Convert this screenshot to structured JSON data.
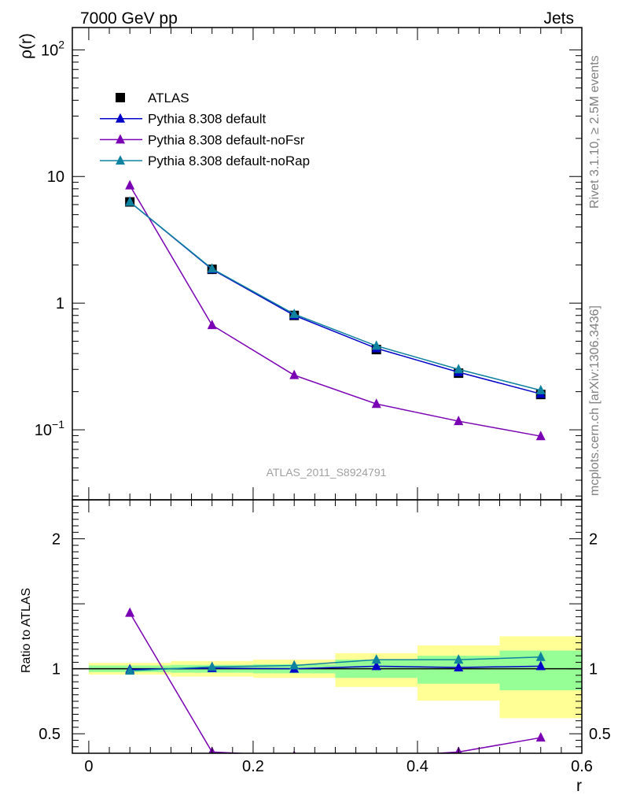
{
  "header": {
    "left": "7000 GeV pp",
    "right": "Jets"
  },
  "side_labels": {
    "top": "Rivet 3.1.10, ≥ 2.5M events",
    "bottom": "mcplots.cern.ch [arXiv:1306.3436]"
  },
  "watermark": "ATLAS_2011_S8924791",
  "colors": {
    "atlas": "#000000",
    "default": "#0000c8",
    "noFsr": "#7a00b4",
    "noRap": "#0f82a0",
    "band_outer": "#ffff96",
    "band_inner": "#96ff96"
  },
  "chart_data": [
    {
      "type": "line",
      "panel": "main",
      "ylabel": "ρ(r)",
      "yscale": "log",
      "ylim": [
        0.028,
        150
      ],
      "xlim": [
        -0.02,
        0.6
      ],
      "yticks": [
        {
          "v": 100,
          "label": "10",
          "sup": "2"
        },
        {
          "v": 10,
          "label": "10",
          "sup": ""
        },
        {
          "v": 1,
          "label": "1",
          "sup": ""
        },
        {
          "v": 0.1,
          "label": "10",
          "sup": "−1"
        }
      ],
      "x": [
        0.05,
        0.15,
        0.25,
        0.35,
        0.45,
        0.55
      ],
      "legend_position": "top-left",
      "series": [
        {
          "name": "ATLAS",
          "key": "atlas",
          "marker": "square",
          "values": [
            6.3,
            1.85,
            0.8,
            0.43,
            0.28,
            0.19
          ]
        },
        {
          "name": "Pythia 8.308 default",
          "key": "default",
          "marker": "triangle",
          "values": [
            6.3,
            1.85,
            0.8,
            0.44,
            0.285,
            0.192
          ]
        },
        {
          "name": "Pythia 8.308 default-noFsr",
          "key": "noFsr",
          "marker": "triangle",
          "values": [
            8.5,
            0.67,
            0.27,
            0.16,
            0.117,
            0.089
          ]
        },
        {
          "name": "Pythia 8.308 default-noRap",
          "key": "noRap",
          "marker": "triangle",
          "values": [
            6.3,
            1.87,
            0.82,
            0.46,
            0.3,
            0.205
          ]
        }
      ]
    },
    {
      "type": "line",
      "panel": "ratio",
      "ylabel": "Ratio to ATLAS",
      "xlabel": "r",
      "ylim": [
        0.35,
        2.3
      ],
      "xlim": [
        -0.02,
        0.6
      ],
      "yticks": [
        {
          "v": 2,
          "label": "2"
        },
        {
          "v": 1,
          "label": "1"
        },
        {
          "v": 0.5,
          "label": "0.5"
        }
      ],
      "xticks": [
        {
          "v": 0,
          "label": "0"
        },
        {
          "v": 0.2,
          "label": "0.2"
        },
        {
          "v": 0.4,
          "label": "0.4"
        },
        {
          "v": 0.6,
          "label": "0.6"
        }
      ],
      "x": [
        0.05,
        0.15,
        0.25,
        0.35,
        0.45,
        0.55
      ],
      "bands": [
        {
          "x0": 0.0,
          "x1": 0.1,
          "outer": [
            0.955,
            1.045
          ],
          "inner": [
            0.975,
            1.025
          ]
        },
        {
          "x0": 0.1,
          "x1": 0.2,
          "outer": [
            0.94,
            1.06
          ],
          "inner": [
            0.97,
            1.03
          ]
        },
        {
          "x0": 0.2,
          "x1": 0.3,
          "outer": [
            0.93,
            1.07
          ],
          "inner": [
            0.965,
            1.035
          ]
        },
        {
          "x0": 0.3,
          "x1": 0.4,
          "outer": [
            0.86,
            1.12
          ],
          "inner": [
            0.93,
            1.07
          ]
        },
        {
          "x0": 0.4,
          "x1": 0.5,
          "outer": [
            0.755,
            1.18
          ],
          "inner": [
            0.885,
            1.1
          ]
        },
        {
          "x0": 0.5,
          "x1": 0.6,
          "outer": [
            0.62,
            1.25
          ],
          "inner": [
            0.835,
            1.14
          ]
        }
      ],
      "series": [
        {
          "name": "Pythia 8.308 default",
          "key": "default",
          "values": [
            0.995,
            1.005,
            1.0,
            1.02,
            1.01,
            1.02
          ]
        },
        {
          "name": "Pythia 8.308 default-noFsr",
          "key": "noFsr",
          "values": [
            1.43,
            0.36,
            0.33,
            0.32,
            0.36,
            0.47
          ]
        },
        {
          "name": "Pythia 8.308 default-noRap",
          "key": "noRap",
          "values": [
            0.985,
            1.015,
            1.025,
            1.07,
            1.07,
            1.09
          ]
        }
      ]
    }
  ]
}
